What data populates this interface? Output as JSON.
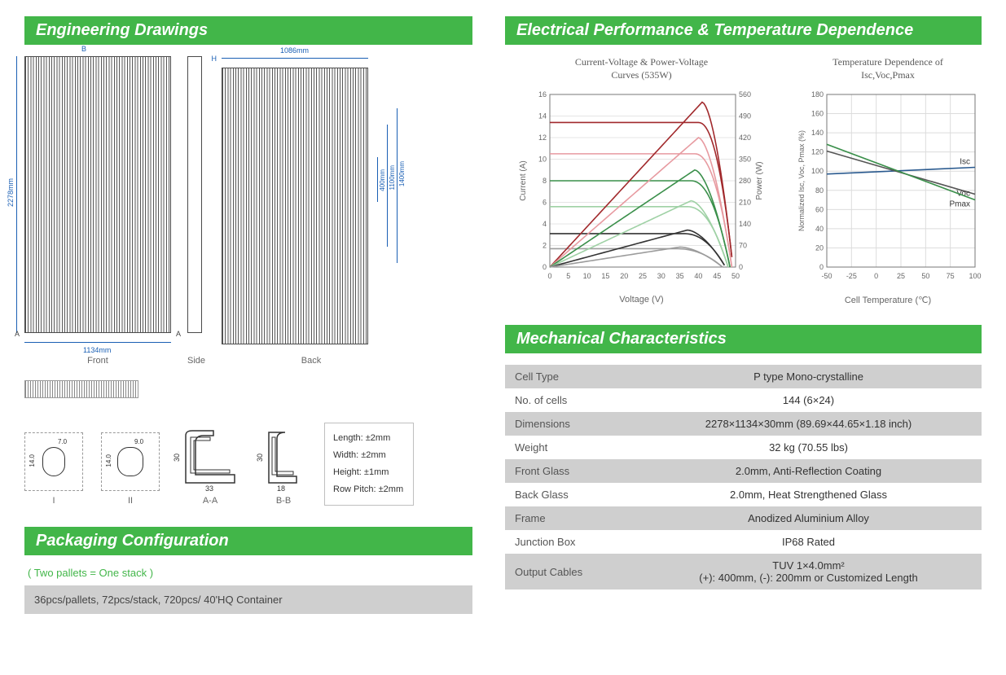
{
  "headers": {
    "engineering": "Engineering Drawings",
    "electrical": "Electrical Performance & Temperature Dependence",
    "mechanical": "Mechanical Characteristics",
    "packaging": "Packaging Configuration"
  },
  "drawings": {
    "dims": {
      "front_width": "1134mm",
      "side_height": "2278mm",
      "back_width": "1086mm",
      "back_h1": "400mm",
      "back_h2": "1100mm",
      "back_h3": "1400mm"
    },
    "captions": {
      "front": "Front",
      "side": "Side",
      "back": "Back",
      "aa": "A-A",
      "bb": "B-B",
      "i": "I",
      "ii": "II"
    },
    "section_marks": {
      "a": "A",
      "b": "B",
      "h": "H"
    },
    "detail_dims": {
      "i_w": "7.0",
      "i_h": "14.0",
      "ii_w": "9.0",
      "ii_h": "14.0",
      "aa_w": "33",
      "aa_h": "30",
      "bb_w": "18",
      "bb_h": "30"
    },
    "tolerances": {
      "length": "Length: ±2mm",
      "width": "Width: ±2mm",
      "height": "Height: ±1mm",
      "rowpitch": "Row Pitch: ±2mm"
    }
  },
  "packaging": {
    "note": "( Two pallets = One stack )",
    "config": "36pcs/pallets, 72pcs/stack, 720pcs/ 40'HQ Container"
  },
  "chart1": {
    "title": "Current-Voltage & Power-Voltage\nCurves (535W)",
    "x_label": "Voltage (V)",
    "y1_label": "Current (A)",
    "y2_label": "Power (W)",
    "colors": {
      "iv1": "#a1292c",
      "iv2": "#e79aa0",
      "iv3": "#3a8f4a",
      "iv4": "#9fd1a5",
      "iv5": "#333333",
      "iv6": "#9c9c9c",
      "grid": "#dcdcdc",
      "axis": "#777"
    },
    "x_ticks": [
      0,
      5,
      10,
      15,
      20,
      25,
      30,
      35,
      40,
      45,
      50
    ],
    "y1_ticks": [
      0,
      2,
      4,
      6,
      8,
      10,
      12,
      14,
      16
    ],
    "y2_ticks": [
      0,
      70,
      140,
      210,
      280,
      350,
      420,
      490,
      560
    ],
    "x_range": [
      0,
      50
    ],
    "y1_range": [
      0,
      16
    ],
    "y2_range": [
      0,
      560
    ],
    "iv_curves": [
      {
        "color": "#a1292c",
        "flat": 13.4,
        "knee": 40,
        "vmax": 49.3
      },
      {
        "color": "#e79aa0",
        "flat": 10.5,
        "knee": 39,
        "vmax": 49
      },
      {
        "color": "#3a8f4a",
        "flat": 8.0,
        "knee": 38,
        "vmax": 48.5
      },
      {
        "color": "#9fd1a5",
        "flat": 5.6,
        "knee": 37,
        "vmax": 48
      },
      {
        "color": "#333333",
        "flat": 3.1,
        "knee": 36,
        "vmax": 47.3
      },
      {
        "color": "#9c9c9c",
        "flat": 1.7,
        "knee": 34,
        "vmax": 46.5
      }
    ],
    "pv_curves": [
      {
        "color": "#a1292c",
        "peak_v": 41,
        "peak_p": 535,
        "vmax": 49.3
      },
      {
        "color": "#e79aa0",
        "peak_v": 40,
        "peak_p": 420,
        "vmax": 49
      },
      {
        "color": "#3a8f4a",
        "peak_v": 39,
        "peak_p": 315,
        "vmax": 48.5
      },
      {
        "color": "#9fd1a5",
        "peak_v": 38,
        "peak_p": 215,
        "vmax": 48
      },
      {
        "color": "#333333",
        "peak_v": 37,
        "peak_p": 120,
        "vmax": 47.3
      },
      {
        "color": "#9c9c9c",
        "peak_v": 35,
        "peak_p": 65,
        "vmax": 46.5
      }
    ]
  },
  "chart2": {
    "title": "Temperature Dependence of\nIsc,Voc,Pmax",
    "x_label": "Cell Temperature (℃)",
    "y_label": "Normalized Isc, Voc, Pmax (%)",
    "colors": {
      "isc": "#2a5a8f",
      "voc": "#555555",
      "pmax": "#3a8f4a",
      "grid": "#dcdcdc",
      "axis": "#777"
    },
    "x_ticks": [
      -50,
      -25,
      0,
      25,
      50,
      75,
      100
    ],
    "y_ticks": [
      0,
      20,
      40,
      60,
      80,
      100,
      120,
      140,
      160,
      180
    ],
    "x_range": [
      -50,
      100
    ],
    "y_range": [
      0,
      180
    ],
    "series": [
      {
        "name": "Isc",
        "label": "Isc",
        "color": "#2a5a8f",
        "p1": [
          -50,
          97
        ],
        "p2": [
          100,
          104
        ]
      },
      {
        "name": "Voc",
        "label": "Voc",
        "color": "#555555",
        "p1": [
          -50,
          121
        ],
        "p2": [
          100,
          76
        ]
      },
      {
        "name": "Pmax",
        "label": "Pmax",
        "color": "#3a8f4a",
        "p1": [
          -50,
          128
        ],
        "p2": [
          100,
          70
        ]
      }
    ]
  },
  "mech": {
    "rows": [
      {
        "k": "Cell  Type",
        "v": "P type Mono-crystalline",
        "shade": true
      },
      {
        "k": "No. of cells",
        "v": "144 (6×24)",
        "shade": false
      },
      {
        "k": "Dimensions",
        "v": "2278×1134×30mm (89.69×44.65×1.18 inch)",
        "shade": true
      },
      {
        "k": "Weight",
        "v": "32 kg (70.55 lbs)",
        "shade": false
      },
      {
        "k": "Front Glass",
        "v": "2.0mm, Anti-Reflection Coating",
        "shade": true
      },
      {
        "k": "Back Glass",
        "v": "2.0mm, Heat Strengthened Glass",
        "shade": false
      },
      {
        "k": "Frame",
        "v": "Anodized Aluminium Alloy",
        "shade": true
      },
      {
        "k": "Junction Box",
        "v": "IP68 Rated",
        "shade": false
      },
      {
        "k": "Output Cables",
        "v": "TUV 1×4.0mm²\n(+): 400mm, (-): 200mm or Customized Length",
        "shade": true
      }
    ]
  }
}
